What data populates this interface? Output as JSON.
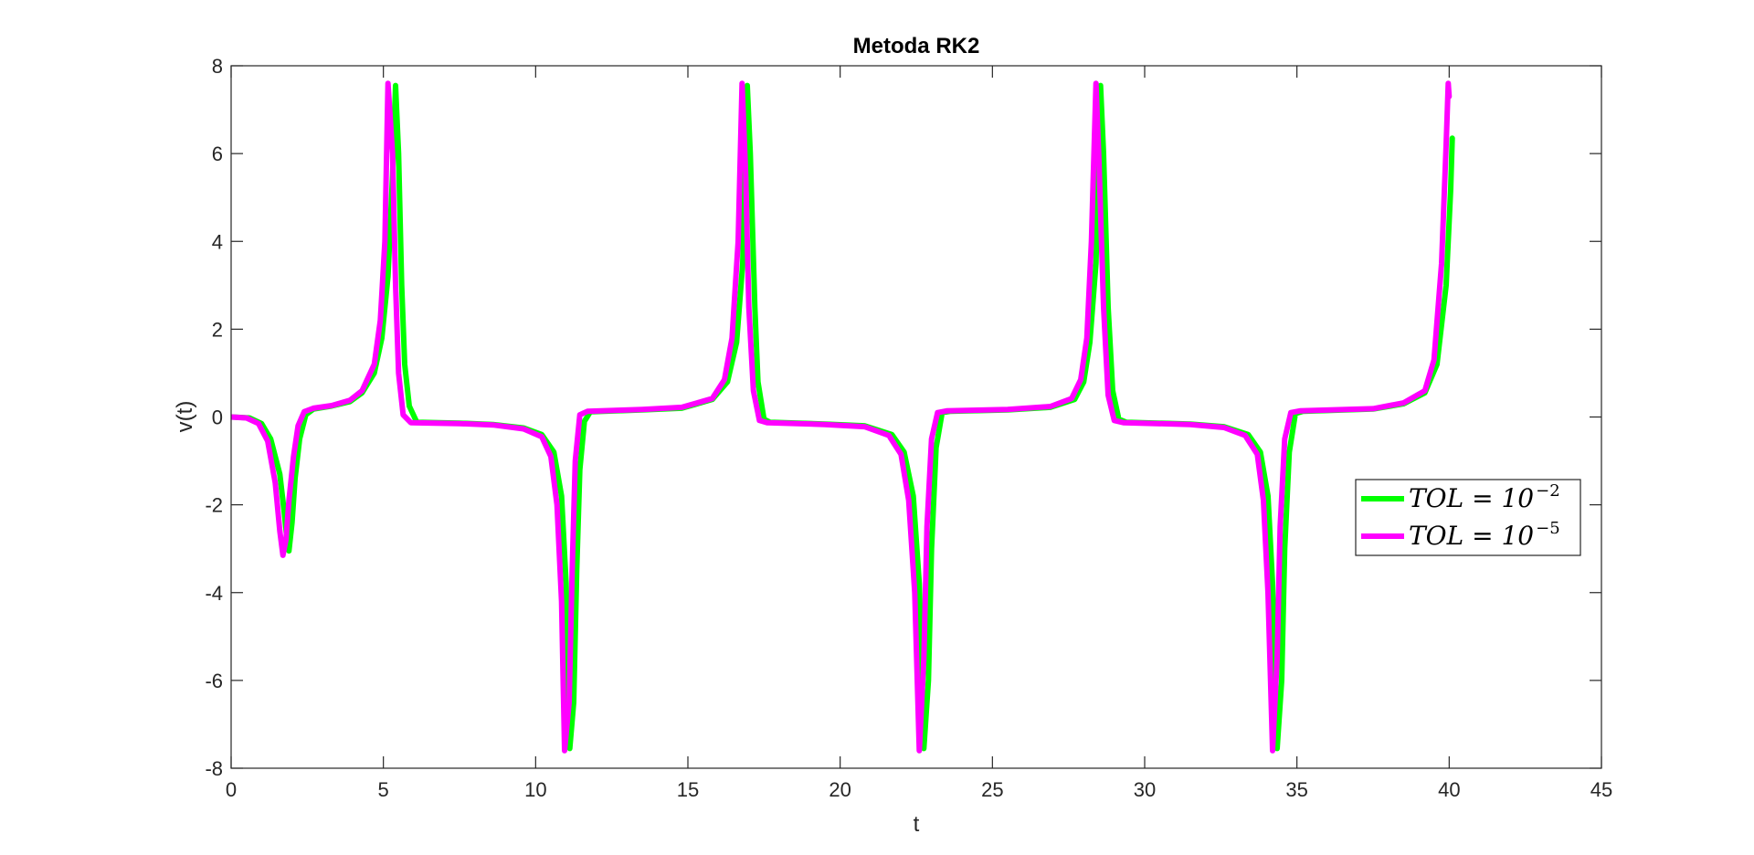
{
  "chart_data": {
    "type": "line",
    "title": "Metoda RK2",
    "xlabel": "t",
    "ylabel": "v(t)",
    "xlim": [
      0,
      45
    ],
    "ylim": [
      -8,
      8
    ],
    "xticks": [
      0,
      5,
      10,
      15,
      20,
      25,
      30,
      35,
      40,
      45
    ],
    "yticks": [
      -8,
      -6,
      -4,
      -2,
      0,
      2,
      4,
      6,
      8
    ],
    "xtick_labels": [
      "0",
      "5",
      "10",
      "15",
      "20",
      "25",
      "30",
      "35",
      "40",
      "45"
    ],
    "ytick_labels": [
      "-8",
      "-6",
      "-4",
      "-2",
      "0",
      "2",
      "4",
      "6",
      "8"
    ],
    "grid": false,
    "legend_position": "right",
    "legend": [
      {
        "label": "TOL = 10",
        "sup": "−2",
        "color": "#00ff00"
      },
      {
        "label": "TOL = 10",
        "sup": "−5",
        "color": "#ff00ff"
      }
    ],
    "series": [
      {
        "name": "TOL = 10^-2",
        "color": "#00ff00",
        "points": [
          [
            0,
            0
          ],
          [
            0.6,
            -0.02
          ],
          [
            1.0,
            -0.15
          ],
          [
            1.3,
            -0.5
          ],
          [
            1.6,
            -1.3
          ],
          [
            1.75,
            -2.2
          ],
          [
            1.85,
            -2.9
          ],
          [
            1.9,
            -3.05
          ],
          [
            2.0,
            -2.4
          ],
          [
            2.1,
            -1.4
          ],
          [
            2.25,
            -0.5
          ],
          [
            2.45,
            0.05
          ],
          [
            2.7,
            0.18
          ],
          [
            3.3,
            0.25
          ],
          [
            3.9,
            0.35
          ],
          [
            4.3,
            0.55
          ],
          [
            4.7,
            1.0
          ],
          [
            4.95,
            1.8
          ],
          [
            5.15,
            3.2
          ],
          [
            5.3,
            5.5
          ],
          [
            5.4,
            7.55
          ],
          [
            5.5,
            6.0
          ],
          [
            5.6,
            3.0
          ],
          [
            5.7,
            1.2
          ],
          [
            5.85,
            0.25
          ],
          [
            6.1,
            -0.12
          ],
          [
            7.5,
            -0.14
          ],
          [
            8.6,
            -0.17
          ],
          [
            9.6,
            -0.25
          ],
          [
            10.2,
            -0.4
          ],
          [
            10.6,
            -0.8
          ],
          [
            10.85,
            -1.8
          ],
          [
            11.0,
            -3.8
          ],
          [
            11.12,
            -7.55
          ],
          [
            11.25,
            -6.5
          ],
          [
            11.35,
            -3.5
          ],
          [
            11.45,
            -1.2
          ],
          [
            11.6,
            -0.1
          ],
          [
            11.8,
            0.12
          ],
          [
            13.5,
            0.16
          ],
          [
            14.8,
            0.2
          ],
          [
            15.8,
            0.4
          ],
          [
            16.3,
            0.8
          ],
          [
            16.6,
            1.7
          ],
          [
            16.8,
            3.5
          ],
          [
            16.95,
            7.55
          ],
          [
            17.05,
            6.0
          ],
          [
            17.2,
            2.5
          ],
          [
            17.3,
            0.8
          ],
          [
            17.5,
            -0.05
          ],
          [
            17.7,
            -0.12
          ],
          [
            19.5,
            -0.16
          ],
          [
            20.8,
            -0.2
          ],
          [
            21.7,
            -0.4
          ],
          [
            22.1,
            -0.8
          ],
          [
            22.4,
            -1.8
          ],
          [
            22.6,
            -3.8
          ],
          [
            22.75,
            -7.55
          ],
          [
            22.9,
            -6.0
          ],
          [
            23.0,
            -3.0
          ],
          [
            23.15,
            -0.7
          ],
          [
            23.35,
            0.1
          ],
          [
            23.6,
            0.13
          ],
          [
            25.5,
            0.16
          ],
          [
            26.9,
            0.22
          ],
          [
            27.7,
            0.4
          ],
          [
            28.0,
            0.8
          ],
          [
            28.2,
            1.7
          ],
          [
            28.4,
            3.5
          ],
          [
            28.55,
            7.55
          ],
          [
            28.65,
            6.0
          ],
          [
            28.8,
            2.5
          ],
          [
            28.95,
            0.6
          ],
          [
            29.15,
            -0.05
          ],
          [
            29.4,
            -0.12
          ],
          [
            31.5,
            -0.16
          ],
          [
            32.6,
            -0.22
          ],
          [
            33.4,
            -0.4
          ],
          [
            33.8,
            -0.8
          ],
          [
            34.05,
            -1.8
          ],
          [
            34.2,
            -3.8
          ],
          [
            34.35,
            -7.55
          ],
          [
            34.5,
            -6.0
          ],
          [
            34.6,
            -3.0
          ],
          [
            34.75,
            -0.8
          ],
          [
            34.95,
            0.08
          ],
          [
            35.2,
            0.13
          ],
          [
            37.5,
            0.18
          ],
          [
            38.5,
            0.3
          ],
          [
            39.2,
            0.55
          ],
          [
            39.6,
            1.2
          ],
          [
            39.9,
            3.0
          ],
          [
            40.05,
            5.2
          ],
          [
            40.1,
            6.35
          ]
        ]
      },
      {
        "name": "TOL = 10^-5",
        "color": "#ff00ff",
        "points": [
          [
            0,
            0
          ],
          [
            0.5,
            -0.02
          ],
          [
            0.9,
            -0.15
          ],
          [
            1.2,
            -0.55
          ],
          [
            1.45,
            -1.5
          ],
          [
            1.6,
            -2.6
          ],
          [
            1.7,
            -3.15
          ],
          [
            1.8,
            -2.8
          ],
          [
            1.9,
            -1.9
          ],
          [
            2.05,
            -0.9
          ],
          [
            2.2,
            -0.2
          ],
          [
            2.4,
            0.12
          ],
          [
            2.7,
            0.2
          ],
          [
            3.3,
            0.26
          ],
          [
            3.9,
            0.38
          ],
          [
            4.3,
            0.6
          ],
          [
            4.7,
            1.2
          ],
          [
            4.9,
            2.2
          ],
          [
            5.05,
            4.0
          ],
          [
            5.15,
            7.6
          ],
          [
            5.3,
            6.0
          ],
          [
            5.4,
            3.0
          ],
          [
            5.5,
            1.0
          ],
          [
            5.65,
            0.05
          ],
          [
            5.9,
            -0.13
          ],
          [
            7.5,
            -0.15
          ],
          [
            8.6,
            -0.18
          ],
          [
            9.6,
            -0.27
          ],
          [
            10.2,
            -0.45
          ],
          [
            10.5,
            -0.9
          ],
          [
            10.7,
            -2.0
          ],
          [
            10.85,
            -4.2
          ],
          [
            10.95,
            -7.6
          ],
          [
            11.1,
            -6.5
          ],
          [
            11.2,
            -3.5
          ],
          [
            11.3,
            -1.0
          ],
          [
            11.45,
            0.05
          ],
          [
            11.7,
            0.13
          ],
          [
            13.5,
            0.17
          ],
          [
            14.8,
            0.22
          ],
          [
            15.8,
            0.42
          ],
          [
            16.2,
            0.85
          ],
          [
            16.45,
            1.8
          ],
          [
            16.65,
            4.0
          ],
          [
            16.78,
            7.6
          ],
          [
            16.9,
            5.5
          ],
          [
            17.0,
            2.5
          ],
          [
            17.15,
            0.6
          ],
          [
            17.35,
            -0.08
          ],
          [
            17.6,
            -0.13
          ],
          [
            19.5,
            -0.17
          ],
          [
            20.8,
            -0.22
          ],
          [
            21.6,
            -0.42
          ],
          [
            22.0,
            -0.85
          ],
          [
            22.25,
            -1.9
          ],
          [
            22.45,
            -4.0
          ],
          [
            22.6,
            -7.6
          ],
          [
            22.75,
            -5.5
          ],
          [
            22.85,
            -2.5
          ],
          [
            23.0,
            -0.5
          ],
          [
            23.2,
            0.1
          ],
          [
            23.5,
            0.14
          ],
          [
            25.5,
            0.17
          ],
          [
            26.9,
            0.24
          ],
          [
            27.6,
            0.42
          ],
          [
            27.9,
            0.85
          ],
          [
            28.1,
            1.8
          ],
          [
            28.25,
            4.0
          ],
          [
            28.4,
            7.6
          ],
          [
            28.5,
            5.8
          ],
          [
            28.65,
            2.5
          ],
          [
            28.8,
            0.5
          ],
          [
            29.0,
            -0.08
          ],
          [
            29.3,
            -0.13
          ],
          [
            31.5,
            -0.17
          ],
          [
            32.6,
            -0.24
          ],
          [
            33.3,
            -0.42
          ],
          [
            33.7,
            -0.85
          ],
          [
            33.9,
            -1.9
          ],
          [
            34.05,
            -4.0
          ],
          [
            34.2,
            -7.6
          ],
          [
            34.35,
            -5.5
          ],
          [
            34.45,
            -2.5
          ],
          [
            34.6,
            -0.5
          ],
          [
            34.8,
            0.1
          ],
          [
            35.1,
            0.14
          ],
          [
            37.5,
            0.19
          ],
          [
            38.5,
            0.32
          ],
          [
            39.2,
            0.6
          ],
          [
            39.5,
            1.3
          ],
          [
            39.75,
            3.5
          ],
          [
            39.9,
            6.2
          ],
          [
            39.97,
            7.6
          ],
          [
            40.0,
            7.3
          ]
        ]
      }
    ]
  }
}
